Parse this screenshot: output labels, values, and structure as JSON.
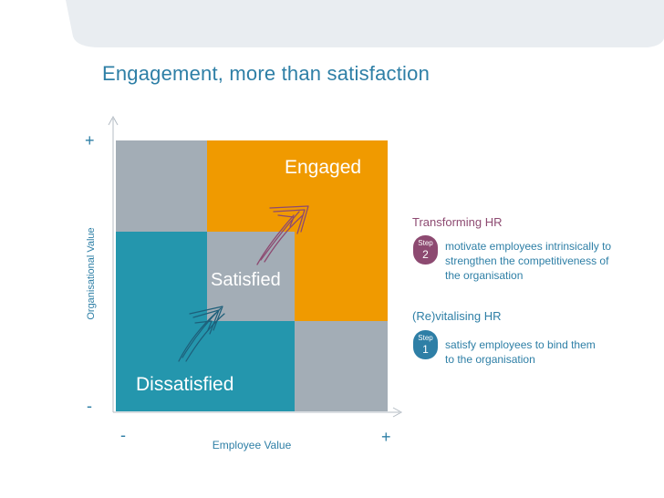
{
  "title": "Engagement, more than satisfaction",
  "axes": {
    "y_label": "Organisational Value",
    "x_label": "Employee Value",
    "y_plus": "+",
    "y_minus": "-",
    "x_minus": "-",
    "x_plus": "+"
  },
  "quadrants": {
    "engaged": "Engaged",
    "satisfied": "Satisfied",
    "dissatisfied": "Dissatisfied"
  },
  "colors": {
    "gray": "#a3adb6",
    "orange": "#f09a00",
    "teal": "#2496ad",
    "purple": "#8d4a71",
    "blue": "#2e7fa6"
  },
  "steps": [
    {
      "heading": "Transforming HR",
      "badge_word": "Step",
      "badge_number": "2",
      "line1": "motivate employees intrinsically to",
      "line2": "strengthen the competitiveness of",
      "line3": "the organisation"
    },
    {
      "heading": "(Re)vitalising HR",
      "badge_word": "Step",
      "badge_number": "1",
      "line1": "satisfy employees to bind them",
      "line2": "to the organisation"
    }
  ]
}
